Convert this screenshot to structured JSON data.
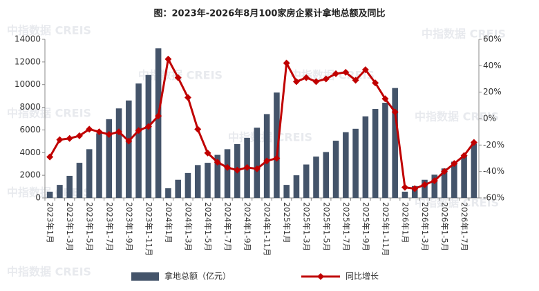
{
  "chart_data": {
    "type": "bar_line",
    "title": "图：2023年-2026年8月100家房企累计拿地总额及同比",
    "watermark": "中指数据 CREIS",
    "categories": [
      "2023年1月",
      null,
      "2023年1-3月",
      null,
      "2023年1-5月",
      null,
      "2023年1-7月",
      null,
      "2023年1-9月",
      null,
      "2023年1-11月",
      null,
      "2024年1月",
      null,
      "2024年1-3月",
      null,
      "2024年1-5月",
      null,
      "2024年1-7月",
      null,
      "2024年1-9月",
      null,
      "2024年1-11月",
      null,
      "2025年1月",
      null,
      "2025年1-3月",
      null,
      "2025年1-5月",
      null,
      "2025年1-7月",
      null,
      "2025年1-9月",
      null,
      "2025年1-11月",
      null,
      "2026年1月",
      null,
      "2026年1-3月",
      null,
      "2026年1-5月",
      null,
      "2026年1-7月",
      null
    ],
    "series": [
      {
        "name": "拿地总额（亿元）",
        "type": "bar",
        "color": "#44546a",
        "values": [
          550,
          1150,
          1950,
          3100,
          4300,
          5700,
          6950,
          7900,
          8600,
          10100,
          10850,
          13200,
          850,
          1600,
          2200,
          2900,
          3100,
          3800,
          4300,
          4750,
          5300,
          6200,
          7400,
          9300,
          1150,
          2000,
          2950,
          3650,
          4050,
          5050,
          5800,
          6100,
          7200,
          7850,
          8400,
          9700,
          550,
          1050,
          1600,
          2050,
          2600,
          3200,
          3700,
          4800
        ]
      },
      {
        "name": "同比增长",
        "type": "line",
        "axis": "y2",
        "color": "#c00000",
        "values": [
          -29,
          -16,
          -15,
          -13,
          -8,
          -10,
          -12,
          -10,
          -17,
          -9,
          -6,
          2,
          45,
          31,
          16,
          -8,
          -26,
          -33,
          -37,
          -39,
          -37,
          -38,
          -32,
          -30,
          42,
          28,
          31,
          28,
          30,
          34,
          35,
          29,
          37,
          27,
          15,
          5,
          -52,
          -53,
          -50,
          -47,
          -40,
          -34,
          -28,
          -18
        ]
      }
    ],
    "ylim": [
      0,
      14000
    ],
    "yticks": [
      0,
      2000,
      4000,
      6000,
      8000,
      10000,
      12000,
      14000
    ],
    "y2lim": [
      -60,
      60
    ],
    "y2ticks": [
      {
        "value": -60,
        "label": "-60%"
      },
      {
        "value": -40,
        "label": "-40%"
      },
      {
        "value": -20,
        "label": "-20%"
      },
      {
        "value": 0,
        "label": "0%"
      },
      {
        "value": 20,
        "label": "20%"
      },
      {
        "value": 40,
        "label": "40%"
      },
      {
        "value": 60,
        "label": "60%"
      }
    ],
    "legend": "bottom"
  }
}
